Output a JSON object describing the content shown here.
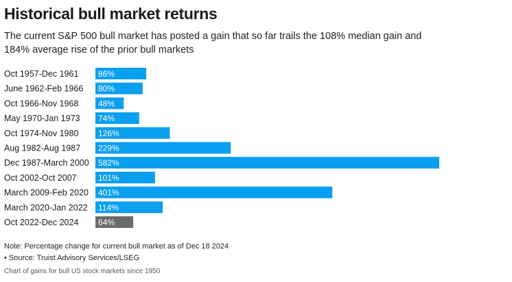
{
  "header": {
    "title": "Historical bull market returns",
    "subtitle": "The current S&P 500 bull market has posted a gain that so far trails the 108% median gain and 184% average rise of the prior bull markets"
  },
  "chart_data": {
    "type": "bar",
    "orientation": "horizontal",
    "categories": [
      "Oct 1957-Dec 1961",
      "June 1962-Feb 1966",
      "Oct 1966-Nov 1968",
      "May 1970-Jan 1973",
      "Oct 1974-Nov 1980",
      "Aug 1982-Aug 1987",
      "Dec 1987-March 2000",
      "Oct 2002-Oct 2007",
      "March 2009-Feb 2020",
      "March 2020-Jan 2022",
      "Oct 2022-Dec 2024"
    ],
    "values": [
      86,
      80,
      48,
      74,
      126,
      229,
      582,
      101,
      401,
      114,
      64
    ],
    "value_labels": [
      "86%",
      "80%",
      "48%",
      "74%",
      "126%",
      "229%",
      "582%",
      "101%",
      "401%",
      "114%",
      "64%"
    ],
    "xlim": [
      0,
      582
    ],
    "grid": false,
    "colors": {
      "prior": "#0a9fef",
      "current": "#6b6b6b"
    },
    "highlight_index": 10
  },
  "footer": {
    "note": "Note: Percentage change for current bull market as of Dec 18 2024",
    "source": "• Source: Truist Advisory Services/LSEG",
    "caption": "Chart of gains for bull US stock markets since 1950"
  }
}
